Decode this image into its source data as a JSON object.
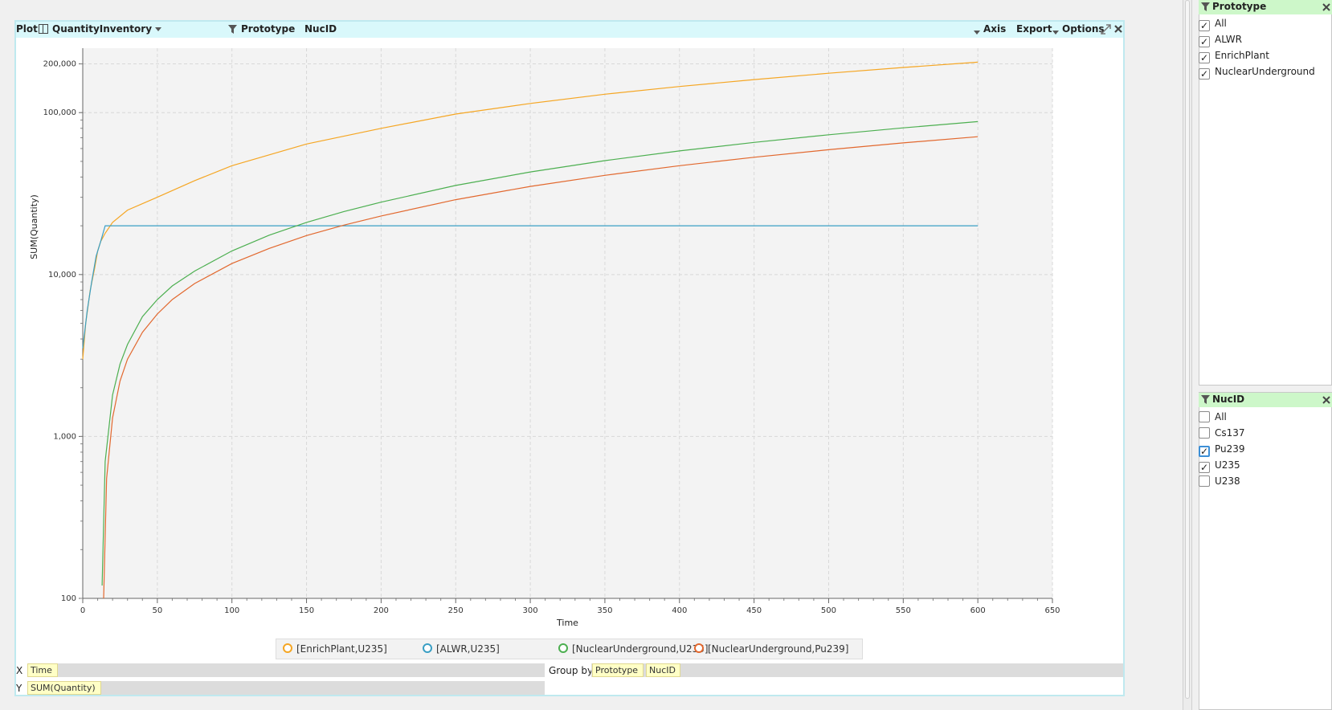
{
  "toolbar": {
    "plot_label": "Plot",
    "measure_select": "QuantityInventory",
    "filter_prototype": "Prototype",
    "filter_nucid": "NucID",
    "axis_label": "Axis",
    "export_label": "Export",
    "options_label": "Options"
  },
  "chart_data": {
    "type": "line",
    "xlabel": "Time",
    "ylabel": "SUM(Quantity)",
    "xlim": [
      0,
      650
    ],
    "ylim": [
      100,
      250000
    ],
    "yscale": "log",
    "grid": true,
    "x_ticks": [
      "0",
      "50",
      "100",
      "150",
      "200",
      "250",
      "300",
      "350",
      "400",
      "450",
      "500",
      "550",
      "600",
      "650"
    ],
    "y_ticks": [
      "100",
      "1,000",
      "10,000",
      "100,000",
      "200,000"
    ],
    "legend_position": "bottom",
    "series": [
      {
        "name": "[EnrichPlant,U235]",
        "color": "#f5a623",
        "x": [
          0,
          2,
          5,
          8,
          10,
          12,
          15,
          20,
          30,
          50,
          75,
          100,
          150,
          200,
          250,
          300,
          350,
          400,
          450,
          500,
          550,
          600
        ],
        "y": [
          3000,
          5000,
          8000,
          11000,
          14000,
          16000,
          18000,
          21000,
          25000,
          30000,
          38000,
          47000,
          64000,
          80000,
          98000,
          114000,
          130000,
          145000,
          160000,
          175000,
          190000,
          205000
        ]
      },
      {
        "name": "[ALWR,U235]",
        "color": "#3a9fc4",
        "x": [
          0,
          3,
          6,
          9,
          12,
          15,
          100,
          200,
          300,
          400,
          500,
          600
        ],
        "y": [
          3500,
          6000,
          9000,
          13000,
          16000,
          20000,
          20000,
          20000,
          20000,
          20000,
          20000,
          20000
        ]
      },
      {
        "name": "[NuclearUnderground,U235]",
        "color": "#4caf50",
        "x": [
          13,
          15,
          20,
          25,
          30,
          40,
          50,
          60,
          75,
          100,
          125,
          150,
          175,
          200,
          250,
          300,
          350,
          400,
          450,
          500,
          550,
          600
        ],
        "y": [
          120,
          700,
          1800,
          2800,
          3700,
          5500,
          7000,
          8500,
          10500,
          14000,
          17500,
          21000,
          24500,
          28000,
          35500,
          43000,
          50500,
          58000,
          65500,
          73000,
          80500,
          88000
        ]
      },
      {
        "name": "[NuclearUnderground,Pu239]",
        "color": "#e2682e",
        "x": [
          14,
          16,
          20,
          25,
          30,
          40,
          50,
          60,
          75,
          100,
          125,
          150,
          175,
          200,
          250,
          300,
          350,
          400,
          450,
          500,
          550,
          600
        ],
        "y": [
          100,
          550,
          1300,
          2200,
          3000,
          4400,
          5700,
          7000,
          8800,
          11700,
          14500,
          17400,
          20200,
          23000,
          29000,
          35000,
          41000,
          47000,
          53000,
          59000,
          65000,
          71000
        ]
      }
    ]
  },
  "axis_rows": {
    "x_label": "X",
    "x_field": "Time",
    "y_label": "Y",
    "y_field": "SUM(Quantity)",
    "group_by_label": "Group by",
    "group_fields": [
      "Prototype",
      "NucID"
    ]
  },
  "prototype_panel": {
    "title": "Prototype",
    "items": [
      {
        "label": "All",
        "checked": true
      },
      {
        "label": "ALWR",
        "checked": true
      },
      {
        "label": "EnrichPlant",
        "checked": true
      },
      {
        "label": "NuclearUnderground",
        "checked": true
      }
    ]
  },
  "nucid_panel": {
    "title": "NucID",
    "items": [
      {
        "label": "All",
        "checked": false
      },
      {
        "label": "Cs137",
        "checked": false
      },
      {
        "label": "Pu239",
        "checked": true
      },
      {
        "label": "U235",
        "checked": true
      },
      {
        "label": "U238",
        "checked": false
      }
    ]
  },
  "icons": {
    "filter": "filter-icon",
    "close": "close-icon",
    "expand": "expand-icon",
    "table_toggle": "table-toggle-icon"
  }
}
